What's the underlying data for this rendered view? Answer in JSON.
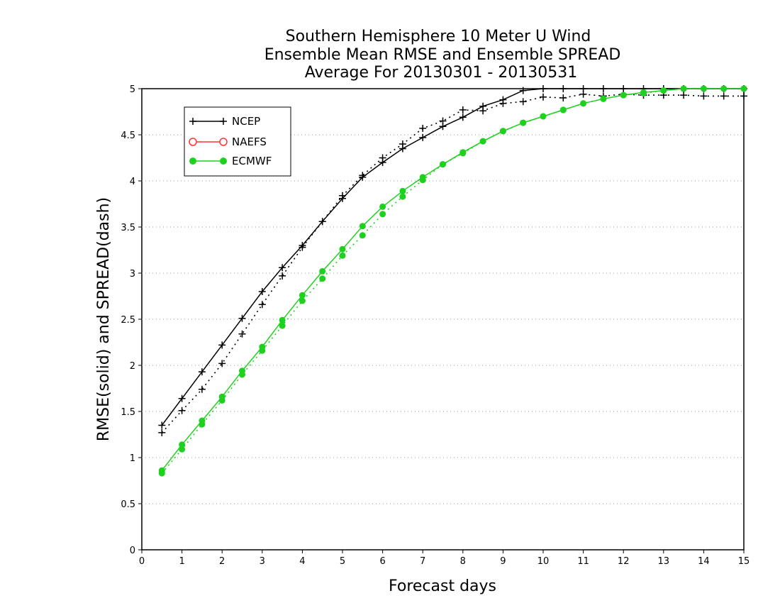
{
  "chart_data": {
    "type": "line",
    "title": [
      "Southern Hemisphere 10 Meter U Wind",
      "Ensemble Mean RMSE and Ensemble SPREAD",
      "Average For 20130301 - 20130531"
    ],
    "xlabel": "Forecast days",
    "ylabel": "RMSE(solid) and SPREAD(dash)",
    "xlim": [
      0,
      15
    ],
    "ylim": [
      0,
      5
    ],
    "xticks": [
      "0",
      "1",
      "2",
      "3",
      "4",
      "5",
      "6",
      "7",
      "8",
      "9",
      "10",
      "11",
      "12",
      "13",
      "14",
      "15"
    ],
    "yticks": [
      "0",
      "0.5",
      "1",
      "1.5",
      "2",
      "2.5",
      "3",
      "3.5",
      "4",
      "4.5",
      "5"
    ],
    "grid": "horizontal dotted",
    "legend_position": "top-left",
    "legend": [
      "NCEP",
      "NAEFS",
      "ECMWF"
    ],
    "x": [
      0.5,
      1,
      1.5,
      2,
      2.5,
      3,
      3.5,
      4,
      4.5,
      5,
      5.5,
      6,
      6.5,
      7,
      7.5,
      8,
      8.5,
      9,
      9.5,
      10,
      10.5,
      11,
      11.5,
      12,
      12.5,
      13,
      13.5,
      14,
      14.5,
      15
    ],
    "series": [
      {
        "name": "NCEP",
        "style": "solid",
        "color": "#000000",
        "marker": "plus",
        "values": [
          1.35,
          1.64,
          1.93,
          2.22,
          2.51,
          2.8,
          3.06,
          3.3,
          3.56,
          3.81,
          4.04,
          4.2,
          4.35,
          4.47,
          4.59,
          4.69,
          4.81,
          4.88,
          4.98,
          5.0,
          5.0,
          5.0,
          5.0,
          5.0,
          5.0,
          5.0,
          5.0,
          5.0,
          5.0,
          5.0
        ]
      },
      {
        "name": "NCEP",
        "style": "dash",
        "color": "#000000",
        "marker": "plus",
        "values": [
          1.27,
          1.51,
          1.74,
          2.02,
          2.34,
          2.66,
          2.97,
          3.28,
          3.56,
          3.84,
          4.06,
          4.25,
          4.4,
          4.57,
          4.65,
          4.77,
          4.76,
          4.84,
          4.86,
          4.91,
          4.9,
          4.94,
          4.92,
          4.94,
          4.93,
          4.93,
          4.93,
          4.92,
          4.92,
          4.92
        ]
      },
      {
        "name": "ECMWF",
        "style": "solid",
        "color": "#1fd11f",
        "marker": "dot",
        "values": [
          0.86,
          1.14,
          1.4,
          1.66,
          1.94,
          2.2,
          2.49,
          2.76,
          3.02,
          3.26,
          3.51,
          3.72,
          3.89,
          4.04,
          4.18,
          4.31,
          4.43,
          4.54,
          4.63,
          4.7,
          4.77,
          4.84,
          4.89,
          4.93,
          4.96,
          4.98,
          5.0,
          5.0,
          5.0,
          5.0
        ]
      },
      {
        "name": "ECMWF",
        "style": "dash",
        "color": "#1fd11f",
        "marker": "dot",
        "values": [
          0.83,
          1.09,
          1.36,
          1.62,
          1.9,
          2.16,
          2.43,
          2.7,
          2.94,
          3.19,
          3.41,
          3.64,
          3.83,
          4.01,
          4.18,
          4.3,
          4.43,
          4.54,
          4.63,
          4.7,
          4.77,
          4.84,
          4.89,
          4.93,
          4.95,
          4.98,
          5.0,
          5.0,
          5.0,
          5.0
        ]
      }
    ],
    "colors": {
      "ncep": "#000000",
      "naefs": "#ff3333",
      "ecmwf": "#1fd11f",
      "grid": "#999999"
    }
  }
}
